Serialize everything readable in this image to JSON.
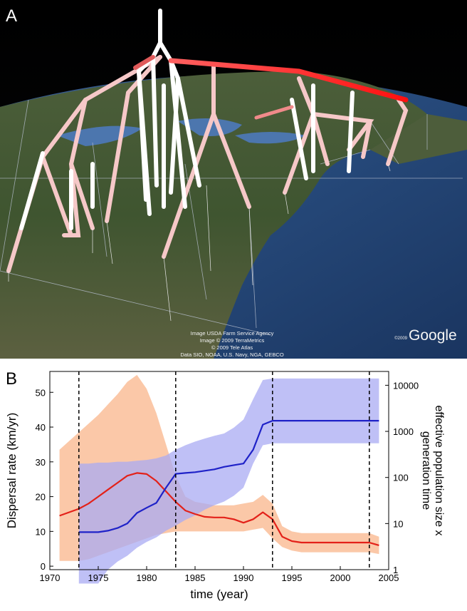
{
  "panel_a": {
    "label": "A",
    "attribution": [
      "Image USDA Farm Service Agency",
      "Image © 2009 TerraMetrics",
      "© 2009 Tele Atlas",
      "Data SIO, NOAA, U.S. Navy, NGA, GEBCO"
    ],
    "logo_year": "©2009",
    "logo_text": "Google"
  },
  "chart_data": {
    "label": "B",
    "type": "line",
    "xlabel": "time (year)",
    "ylabel_left": "Dispersal rate (km/yr)",
    "ylabel_right_line1": "effective population size x",
    "ylabel_right_line2": "generation time",
    "xlim": [
      1970,
      2005
    ],
    "ylim_left": [
      -1,
      56
    ],
    "ylim_right_log10": [
      0,
      4.3
    ],
    "x_ticks": [
      1970,
      1975,
      1980,
      1985,
      1990,
      1995,
      2000,
      2005
    ],
    "x_tick_labels": [
      "1970",
      "1975",
      "1980",
      "1985",
      "1990",
      "1995",
      "2000",
      "2005"
    ],
    "y_left_ticks": [
      0,
      10,
      20,
      30,
      40,
      50
    ],
    "y_left_tick_labels": [
      "0",
      "10",
      "20",
      "30",
      "40",
      "50"
    ],
    "y_right_ticks": [
      1,
      10,
      100,
      1000,
      10000
    ],
    "y_right_tick_labels": [
      "1",
      "10",
      "100",
      "1000",
      "10000"
    ],
    "vlines": [
      1973,
      1983,
      1993,
      2003
    ],
    "colors": {
      "dispersal_line": "#e32119",
      "dispersal_band": "#fbc8a8",
      "popsize_line": "#1f22c8",
      "popsize_band": "#a9abf3",
      "overlap": "#c3a3cf"
    },
    "series": [
      {
        "axis": "left",
        "line": "dispersal_line",
        "band": "dispersal_band",
        "x": [
          1971,
          1972,
          1973,
          1974,
          1975,
          1976,
          1977,
          1978,
          1979,
          1980,
          1981,
          1982,
          1983,
          1984,
          1985,
          1986,
          1987,
          1988,
          1989,
          1990,
          1991,
          1992,
          1993,
          1994,
          1995,
          1996,
          1997,
          1998,
          1999,
          2000,
          2001,
          2002,
          2003,
          2004
        ],
        "mean": [
          14.5,
          15.5,
          16.5,
          18,
          20,
          22,
          24,
          26,
          26.8,
          26.5,
          24.5,
          21.5,
          18.5,
          16,
          15,
          14.2,
          14,
          14,
          13.5,
          12.5,
          13.5,
          15.5,
          13.5,
          8.5,
          7.2,
          6.8,
          6.8,
          6.8,
          6.8,
          6.8,
          6.8,
          6.8,
          6.8,
          6
        ],
        "lower": [
          1.5,
          1.5,
          1.5,
          2,
          3,
          4,
          5,
          6,
          7,
          8,
          9,
          9.5,
          10,
          10,
          10,
          10,
          10,
          10,
          10,
          10,
          10.5,
          11,
          8,
          5.5,
          4.5,
          4,
          4,
          4,
          4,
          4,
          4,
          4,
          4,
          3.5
        ],
        "upper": [
          33.5,
          36,
          38.5,
          41,
          43.5,
          46.5,
          49.5,
          53,
          55,
          51,
          44,
          35,
          26,
          20,
          18.5,
          18,
          17.5,
          17.5,
          17.5,
          18,
          18.5,
          20.5,
          18,
          11.5,
          10,
          9.5,
          9.5,
          9.5,
          9.5,
          9.5,
          9.5,
          9.5,
          9.5,
          8.5
        ]
      },
      {
        "axis": "right",
        "line": "popsize_line",
        "band": "popsize_band",
        "x": [
          1973,
          1974,
          1975,
          1976,
          1977,
          1978,
          1979,
          1980,
          1981,
          1982,
          1983,
          1984,
          1985,
          1986,
          1987,
          1988,
          1989,
          1990,
          1991,
          1992,
          1993,
          1994,
          1995,
          1996,
          1997,
          1998,
          1999,
          2000,
          2001,
          2002,
          2003,
          2004
        ],
        "mean": [
          6.5,
          6.5,
          6.5,
          7,
          8,
          10,
          17,
          22,
          28,
          60,
          120,
          125,
          130,
          140,
          150,
          170,
          185,
          200,
          400,
          1400,
          1700,
          1700,
          1700,
          1700,
          1700,
          1700,
          1700,
          1700,
          1700,
          1700,
          1700,
          1700
        ],
        "lower": [
          0.5,
          0.5,
          0.5,
          1,
          1.5,
          2,
          3,
          4,
          5,
          7,
          9,
          12,
          15,
          20,
          25,
          30,
          40,
          60,
          200,
          500,
          550,
          550,
          550,
          550,
          550,
          550,
          550,
          550,
          550,
          550,
          550,
          550
        ],
        "upper": [
          200,
          200,
          210,
          210,
          220,
          220,
          230,
          240,
          260,
          300,
          400,
          500,
          600,
          700,
          800,
          900,
          1200,
          1800,
          5000,
          13000,
          14000,
          14000,
          14000,
          14000,
          14000,
          14000,
          14000,
          14000,
          14000,
          14000,
          14000,
          14000
        ]
      }
    ]
  }
}
